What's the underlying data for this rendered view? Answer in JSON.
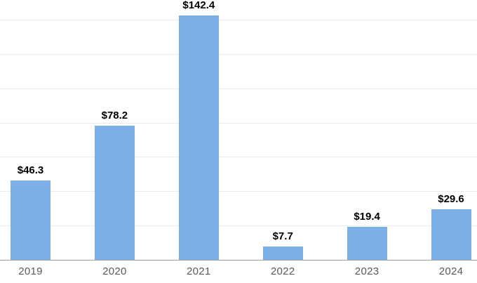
{
  "chart_data": {
    "type": "bar",
    "categories": [
      "2019",
      "2020",
      "2021",
      "2022",
      "2023",
      "2024"
    ],
    "values": [
      46.3,
      78.2,
      142.4,
      7.7,
      19.4,
      29.6
    ],
    "value_labels": [
      "$46.3",
      "$78.2",
      "$142.4",
      "$7.7",
      "$19.4",
      "$29.6"
    ],
    "title": "",
    "xlabel": "",
    "ylabel": "",
    "ylim": [
      0,
      140
    ],
    "grid_step": 20,
    "grid": "horizontal-only",
    "legend": "none",
    "y_axis_tick_labels_visible": false,
    "colors": {
      "bar": "#7cafe8",
      "gridline": "#ececec",
      "axis_line": "#9e9e9e",
      "value_label": "#000000",
      "tick_label": "#595959",
      "background": "#ffffff"
    }
  }
}
